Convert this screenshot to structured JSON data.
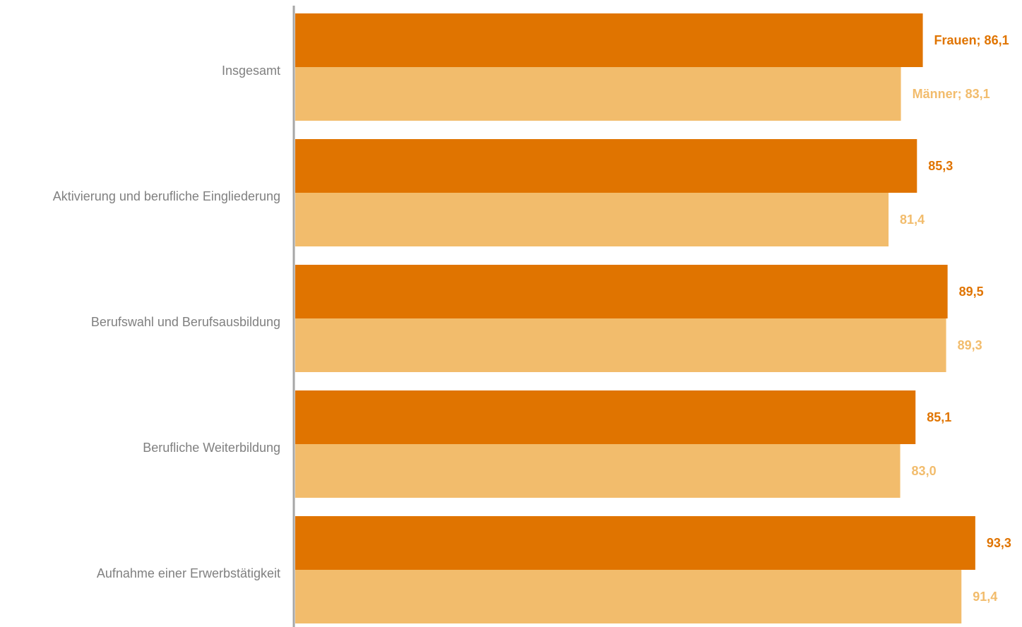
{
  "colors": {
    "frauen": "#E07400",
    "maenner": "#F2BC6C",
    "axis": "#A6A6A6",
    "category_text": "#808080"
  },
  "chart_data": {
    "type": "bar",
    "orientation": "horizontal",
    "categories": [
      "Insgesamt",
      "Aktivierung und berufliche Eingliederung",
      "Berufswahl und Berufsausbildung",
      "Berufliche Weiterbildung",
      "Aufnahme einer Erwerbstätigkeit"
    ],
    "series": [
      {
        "name": "Frauen",
        "values": [
          86.1,
          85.3,
          89.5,
          85.1,
          93.3
        ],
        "labels": [
          "Frauen; 86,1",
          "85,3",
          "89,5",
          "85,1",
          "93,3"
        ]
      },
      {
        "name": "Männer",
        "values": [
          83.1,
          81.4,
          89.3,
          83.0,
          91.4
        ],
        "labels": [
          "Männer; 83,1",
          "81,4",
          "89,3",
          "83,0",
          "91,4"
        ]
      }
    ],
    "xlim": [
      0,
      100
    ],
    "grid": false,
    "legend": "none"
  }
}
